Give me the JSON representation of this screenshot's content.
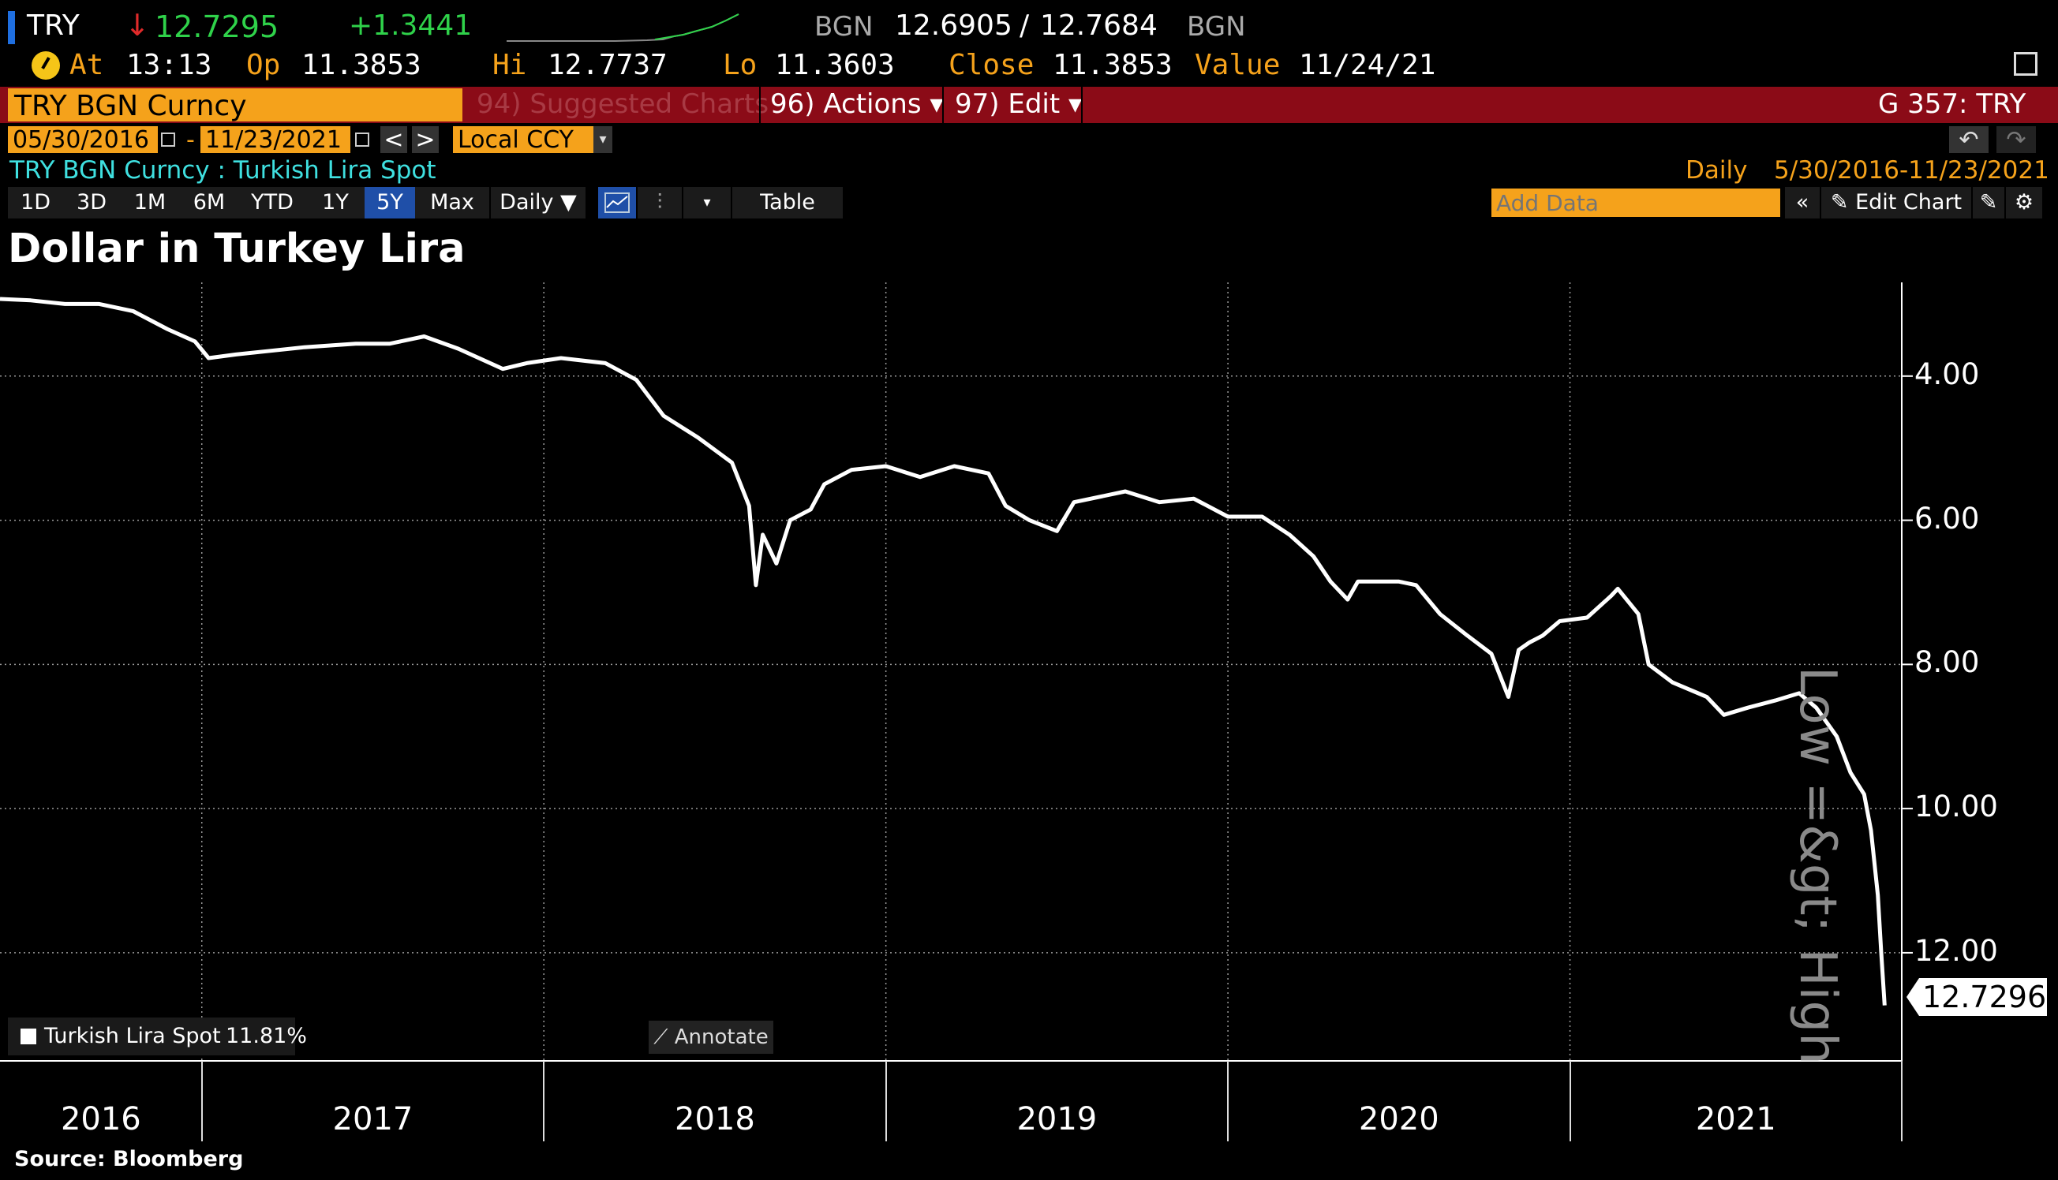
{
  "header": {
    "ticker": "TRY",
    "arrow": "↓",
    "last": "12.7295",
    "change": "+1.3441",
    "bid_ccy": "BGN",
    "bid": "12.6905",
    "slash": "/",
    "ask": "12.7684",
    "ask_ccy": "BGN"
  },
  "stats": {
    "at_label": "At",
    "at_value": "13:13",
    "op_label": "Op",
    "op_value": "11.3853",
    "hi_label": "Hi",
    "hi_value": "12.7737",
    "lo_label": "Lo",
    "lo_value": "11.3603",
    "close_label": "Close",
    "close_value": "11.3853",
    "value_label": "Value",
    "value_date": "11/24/21"
  },
  "menubar": {
    "security": "TRY BGN Curncy",
    "suggested": "94) Suggested Charts",
    "actions": "96) Actions ▾",
    "edit": "97) Edit ▾",
    "gcode": "G 357: TRY"
  },
  "daterow": {
    "start": "05/30/2016",
    "dash": "-",
    "end": "11/23/2021",
    "prev": "<",
    "next": ">",
    "currency": "Local CCY"
  },
  "inforow": {
    "desc": "TRY BGN Curncy : Turkish Lira Spot",
    "freq": "Daily",
    "range": "5/30/2016-11/23/2021"
  },
  "periods": [
    "1D",
    "3D",
    "1M",
    "6M",
    "YTD",
    "1Y",
    "5Y",
    "Max"
  ],
  "active_period": "5Y",
  "toolbar": {
    "daily": "Daily ▼",
    "table": "Table",
    "add_data_placeholder": "Add Data",
    "collapse": "«",
    "edit_chart": "✎ Edit Chart"
  },
  "legend": {
    "series": "Turkish Lira Spot",
    "pct": "11.81%",
    "annotate": "⟋ Annotate"
  },
  "last_value_tag": "12.7296",
  "side_label": "Low =&gt; High",
  "source": "Source: Bloomberg",
  "colors": {
    "amber": "#f5a21b",
    "menu_red": "#8b0b17",
    "green": "#2fd24a",
    "line": "#ffffff",
    "grid": "#9a9a9a"
  },
  "chart_data": {
    "type": "line",
    "title": "Dollar in Turkey Lira",
    "y_inverted": true,
    "ylim": [
      2.7,
      13.5
    ],
    "yticks": [
      4.0,
      6.0,
      8.0,
      10.0,
      12.0
    ],
    "ytick_labels": [
      "4.00",
      "6.00",
      "8.00",
      "10.00",
      "12.00"
    ],
    "x_years": [
      "2016",
      "2017",
      "2018",
      "2019",
      "2020",
      "2021"
    ],
    "xlim": [
      2016.41,
      2021.97
    ],
    "grid": true,
    "series": [
      {
        "name": "Turkish Lira Spot",
        "points": [
          [
            2016.41,
            2.93
          ],
          [
            2016.5,
            2.95
          ],
          [
            2016.6,
            3.0
          ],
          [
            2016.7,
            3.0
          ],
          [
            2016.8,
            3.1
          ],
          [
            2016.9,
            3.35
          ],
          [
            2016.98,
            3.52
          ],
          [
            2017.02,
            3.75
          ],
          [
            2017.1,
            3.7
          ],
          [
            2017.2,
            3.65
          ],
          [
            2017.3,
            3.6
          ],
          [
            2017.45,
            3.55
          ],
          [
            2017.55,
            3.55
          ],
          [
            2017.65,
            3.45
          ],
          [
            2017.75,
            3.62
          ],
          [
            2017.88,
            3.9
          ],
          [
            2017.95,
            3.82
          ],
          [
            2018.05,
            3.75
          ],
          [
            2018.18,
            3.82
          ],
          [
            2018.27,
            4.05
          ],
          [
            2018.35,
            4.55
          ],
          [
            2018.45,
            4.85
          ],
          [
            2018.55,
            5.2
          ],
          [
            2018.6,
            5.8
          ],
          [
            2018.62,
            6.9
          ],
          [
            2018.64,
            6.2
          ],
          [
            2018.68,
            6.6
          ],
          [
            2018.72,
            6.0
          ],
          [
            2018.78,
            5.85
          ],
          [
            2018.82,
            5.5
          ],
          [
            2018.9,
            5.3
          ],
          [
            2019.0,
            5.25
          ],
          [
            2019.1,
            5.4
          ],
          [
            2019.2,
            5.25
          ],
          [
            2019.3,
            5.35
          ],
          [
            2019.35,
            5.8
          ],
          [
            2019.42,
            6.0
          ],
          [
            2019.5,
            6.15
          ],
          [
            2019.55,
            5.75
          ],
          [
            2019.7,
            5.6
          ],
          [
            2019.8,
            5.75
          ],
          [
            2019.9,
            5.7
          ],
          [
            2020.0,
            5.95
          ],
          [
            2020.1,
            5.95
          ],
          [
            2020.18,
            6.2
          ],
          [
            2020.25,
            6.5
          ],
          [
            2020.3,
            6.85
          ],
          [
            2020.35,
            7.1
          ],
          [
            2020.38,
            6.85
          ],
          [
            2020.5,
            6.85
          ],
          [
            2020.55,
            6.9
          ],
          [
            2020.62,
            7.3
          ],
          [
            2020.7,
            7.6
          ],
          [
            2020.77,
            7.85
          ],
          [
            2020.82,
            8.45
          ],
          [
            2020.85,
            7.8
          ],
          [
            2020.88,
            7.7
          ],
          [
            2020.92,
            7.6
          ],
          [
            2020.97,
            7.4
          ],
          [
            2021.05,
            7.35
          ],
          [
            2021.12,
            7.05
          ],
          [
            2021.14,
            6.95
          ],
          [
            2021.2,
            7.3
          ],
          [
            2021.23,
            8.0
          ],
          [
            2021.3,
            8.25
          ],
          [
            2021.4,
            8.45
          ],
          [
            2021.45,
            8.7
          ],
          [
            2021.52,
            8.6
          ],
          [
            2021.6,
            8.5
          ],
          [
            2021.67,
            8.4
          ],
          [
            2021.72,
            8.6
          ],
          [
            2021.78,
            9.0
          ],
          [
            2021.82,
            9.5
          ],
          [
            2021.86,
            9.8
          ],
          [
            2021.88,
            10.3
          ],
          [
            2021.9,
            11.2
          ],
          [
            2021.91,
            12.0
          ],
          [
            2021.92,
            12.73
          ]
        ]
      }
    ]
  }
}
